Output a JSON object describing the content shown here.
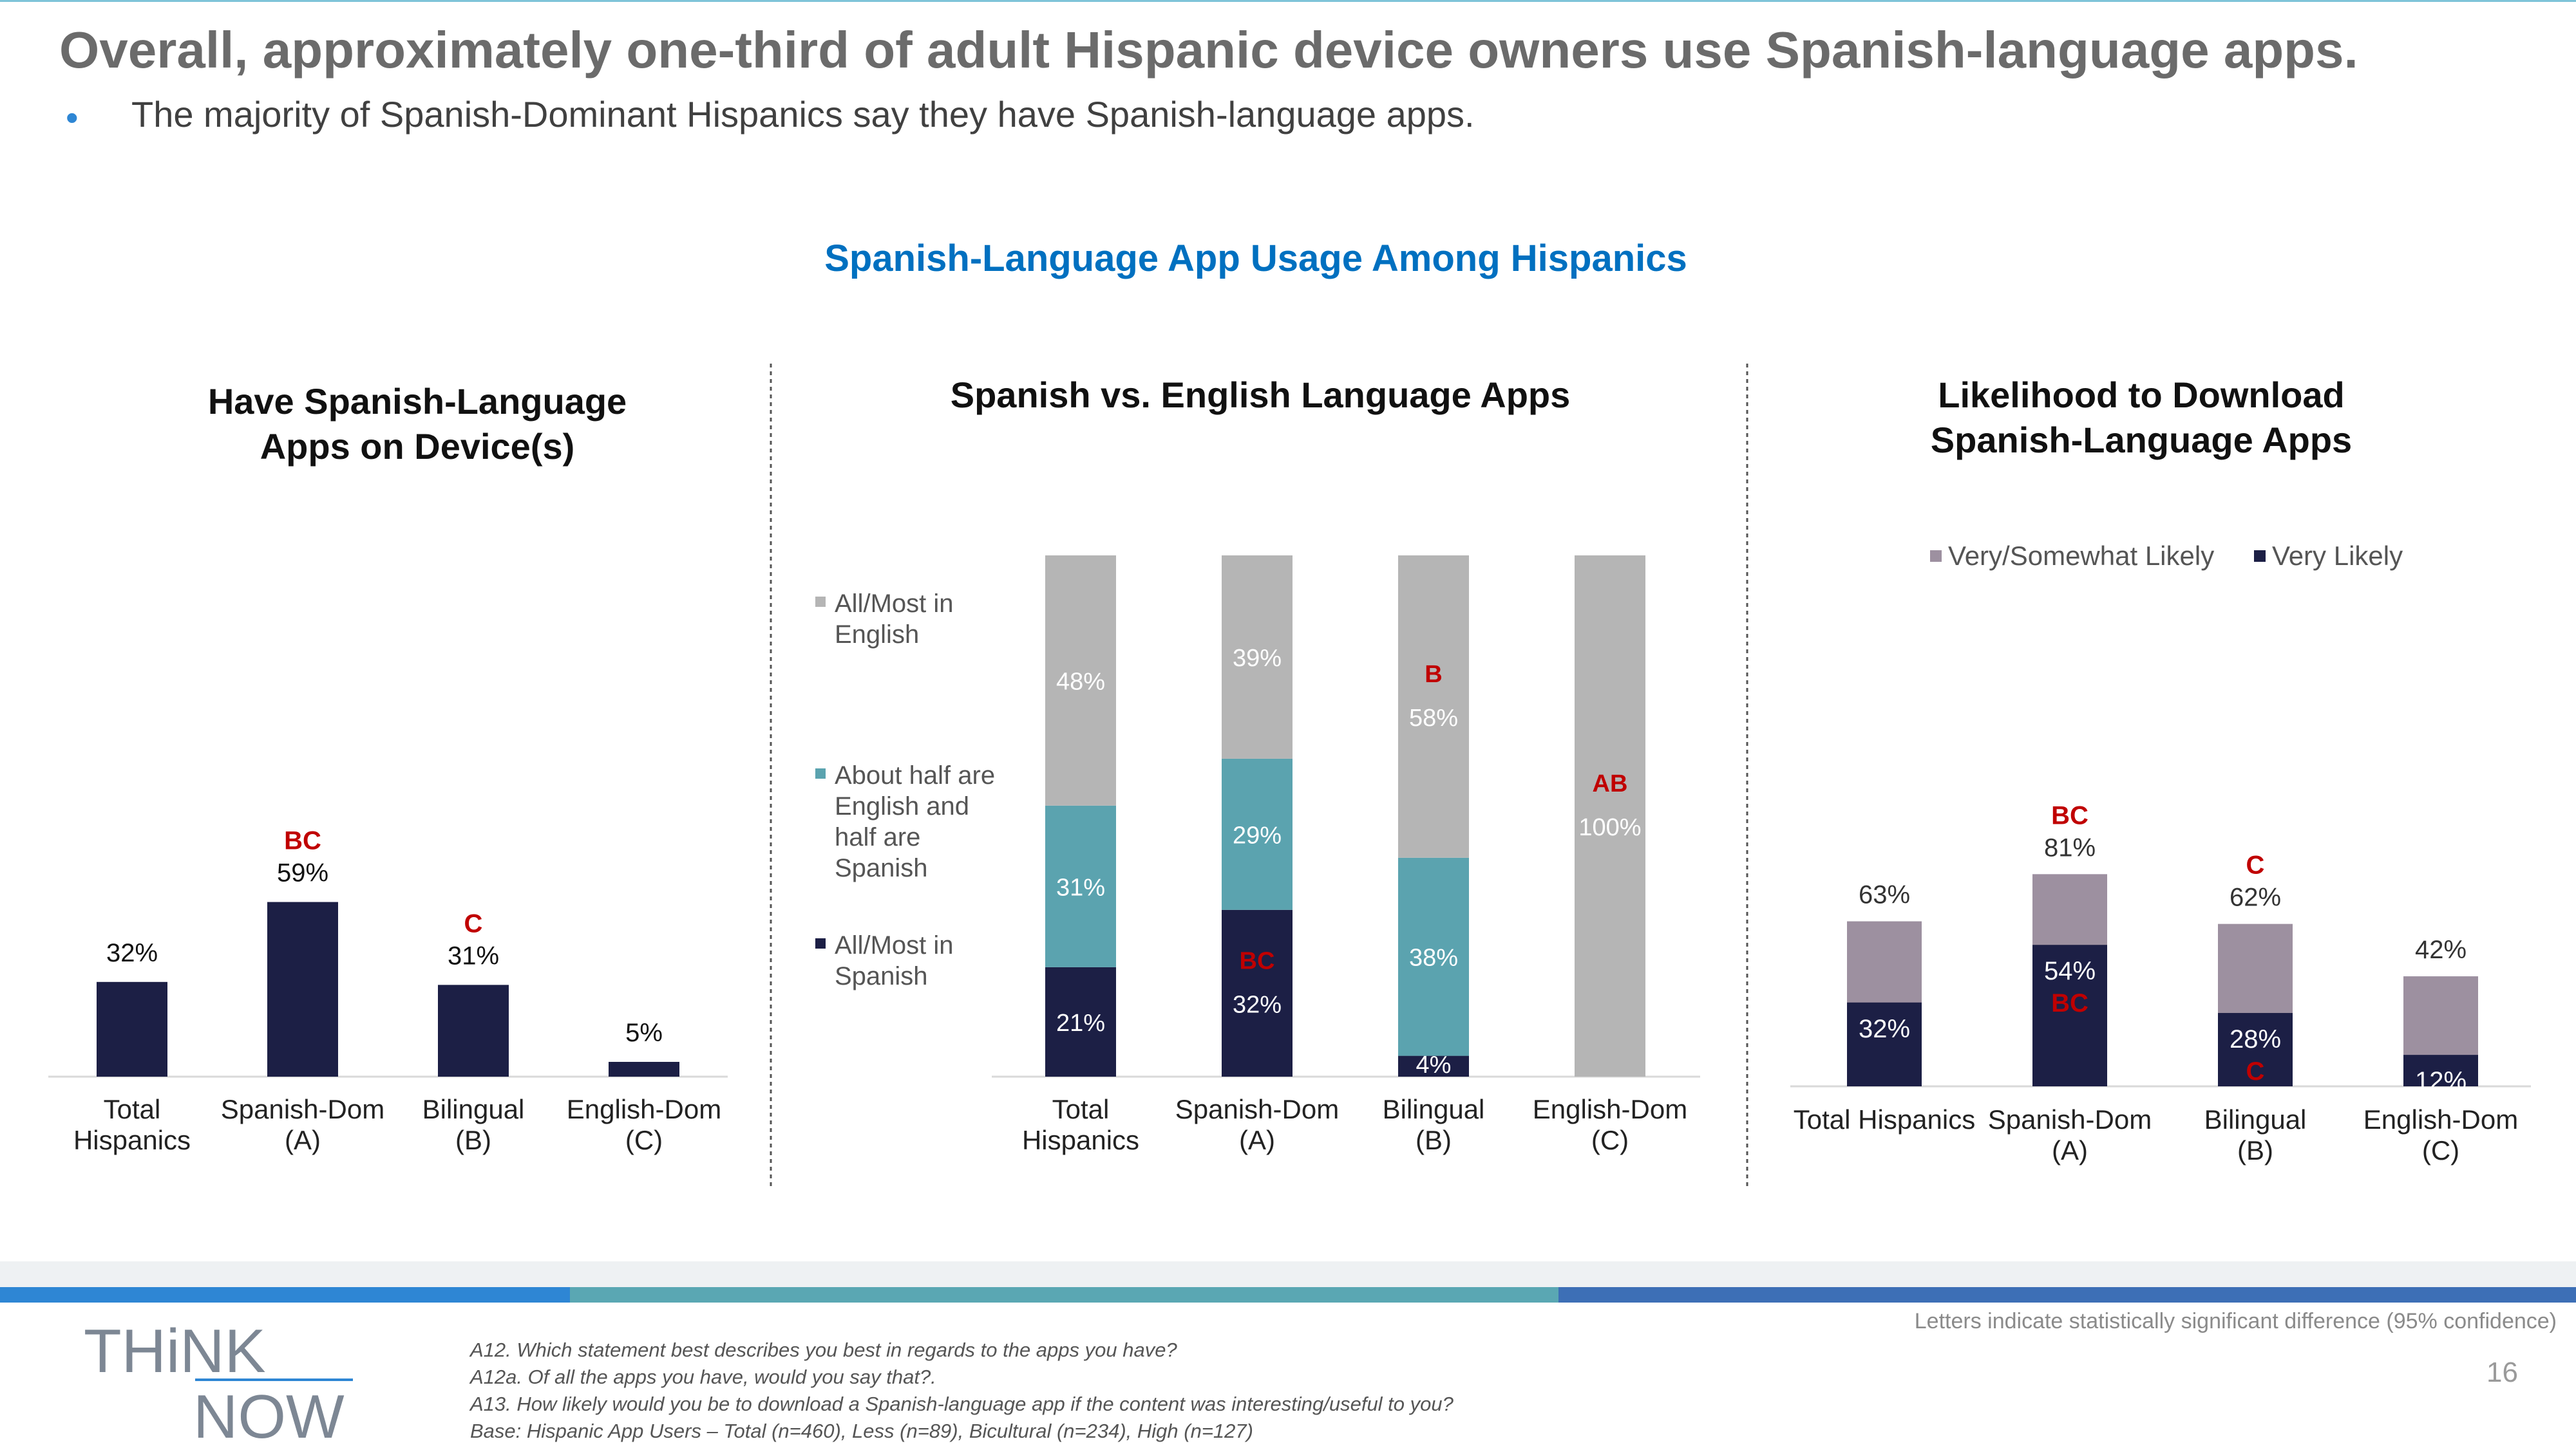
{
  "slide": {
    "title": "Overall, approximately one-third of adult Hispanic device owners use Spanish-language apps.",
    "bullet": "The majority of Spanish-Dominant Hispanics say they have Spanish-language apps.",
    "chart_heading": "Spanish-Language App Usage Among Hispanics",
    "sig_note": "Letters indicate statistically significant difference (95% confidence)",
    "page_number": "16",
    "logo": {
      "line1": "THiNK",
      "line2": "NOW"
    },
    "footnotes": [
      "A12. Which statement best describes you best in regards to the apps you have?",
      "A12a. Of all the apps you have, would you say that?.",
      "A13. How likely would you be to download a Spanish-language app if the content was interesting/useful to you?",
      "Base: Hispanic App Users – Total (n=460), Less (n=89), Bicultural (n=234), High (n=127)"
    ]
  },
  "colors": {
    "navy": "#1c1f45",
    "teal": "#5ba3af",
    "grey": "#b5b5b5",
    "mauve": "#9d90a0",
    "sig": "#c00000",
    "blue": "#0070c0"
  },
  "chart_data": [
    {
      "type": "bar",
      "title": [
        "Have Spanish-Language",
        "Apps on Device(s)"
      ],
      "categories": [
        [
          "Total",
          "Hispanics"
        ],
        [
          "Spanish-Dom",
          "(A)"
        ],
        [
          "Bilingual",
          "(B)"
        ],
        [
          "English-Dom",
          "(C)"
        ]
      ],
      "values": [
        32,
        59,
        31,
        5
      ],
      "value_labels": [
        "32%",
        "59%",
        "31%",
        "5%"
      ],
      "sig_letters": [
        "",
        "BC",
        "C",
        ""
      ],
      "ylim": [
        0,
        100
      ]
    },
    {
      "type": "bar",
      "stacked": true,
      "title": [
        "Spanish vs. English Language Apps"
      ],
      "categories": [
        [
          "Total",
          "Hispanics"
        ],
        [
          "Spanish-Dom",
          "(A)"
        ],
        [
          "Bilingual",
          "(B)"
        ],
        [
          "English-Dom",
          "(C)"
        ]
      ],
      "series": [
        {
          "name": "All/Most in Spanish",
          "legend_lines": [
            "All/Most in",
            "Spanish"
          ],
          "color": "#1c1f45",
          "values": [
            21,
            32,
            4,
            0
          ],
          "labels": [
            "21%",
            "32%",
            "4%",
            ""
          ],
          "sig": [
            "",
            "BC",
            "",
            ""
          ]
        },
        {
          "name": "About half are English and half are Spanish",
          "legend_lines": [
            "About half are",
            "English and",
            "half are",
            "Spanish"
          ],
          "color": "#5ba3af",
          "values": [
            31,
            29,
            38,
            0
          ],
          "labels": [
            "31%",
            "29%",
            "38%",
            ""
          ],
          "sig": [
            "",
            "",
            "",
            ""
          ]
        },
        {
          "name": "All/Most in English",
          "legend_lines": [
            "All/Most in",
            "English"
          ],
          "color": "#b5b5b5",
          "values": [
            48,
            39,
            58,
            100
          ],
          "labels": [
            "48%",
            "39%",
            "58%",
            "100%"
          ],
          "sig": [
            "",
            "",
            "B",
            "AB"
          ]
        }
      ],
      "ylim": [
        0,
        100
      ]
    },
    {
      "type": "bar",
      "overlay": true,
      "title": [
        "Likelihood to Download",
        "Spanish-Language Apps"
      ],
      "categories": [
        [
          "Total Hispanics"
        ],
        [
          "Spanish-Dom",
          "(A)"
        ],
        [
          "Bilingual",
          "(B)"
        ],
        [
          "English-Dom",
          "(C)"
        ]
      ],
      "series": [
        {
          "name": "Very/Somewhat Likely",
          "color": "#9d90a0",
          "values": [
            63,
            81,
            62,
            42
          ],
          "labels": [
            "63%",
            "81%",
            "62%",
            "42%"
          ],
          "sig": [
            "",
            "BC",
            "C",
            ""
          ]
        },
        {
          "name": "Very Likely",
          "color": "#1c1f45",
          "values": [
            32,
            54,
            28,
            12
          ],
          "labels": [
            "32%",
            "54%",
            "28%",
            "12%"
          ],
          "sig": [
            "",
            "BC",
            "C",
            ""
          ]
        }
      ],
      "ylim": [
        0,
        100
      ]
    }
  ]
}
